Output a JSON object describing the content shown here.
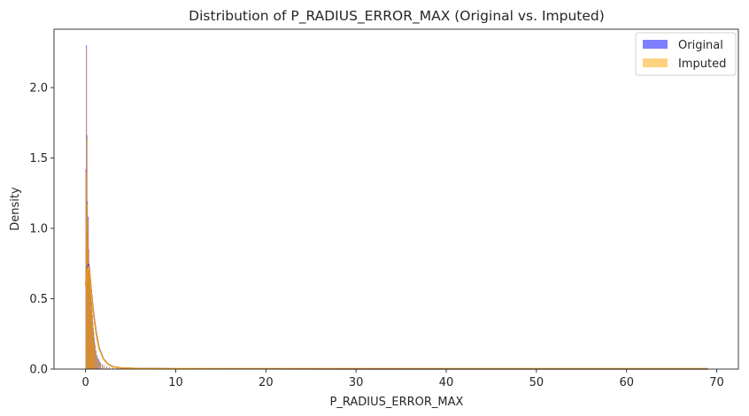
{
  "chart_data": {
    "type": "bar",
    "title": "Distribution of P_RADIUS_ERROR_MAX (Original vs. Imputed)",
    "xlabel": "P_RADIUS_ERROR_MAX",
    "ylabel": "Density",
    "xlim": [
      -3.5,
      72.4
    ],
    "ylim": [
      0,
      2.415
    ],
    "xticks": [
      0,
      10,
      20,
      30,
      40,
      50,
      60,
      70
    ],
    "yticks": [
      0.0,
      0.5,
      1.0,
      1.5,
      2.0
    ],
    "xtick_labels": [
      "0",
      "10",
      "20",
      "30",
      "40",
      "50",
      "60",
      "70"
    ],
    "ytick_labels": [
      "0.0",
      "0.5",
      "1.0",
      "1.5",
      "2.0"
    ],
    "grid": false,
    "legend": "top-right",
    "bin_width": 0.05,
    "series": [
      {
        "name": "Original",
        "color": "#0000ff",
        "kind": "histogram",
        "bins": [
          [
            0.0,
            1.42
          ],
          [
            0.05,
            2.3
          ],
          [
            0.1,
            1.66
          ],
          [
            0.15,
            1.19
          ],
          [
            0.2,
            0.96
          ],
          [
            0.25,
            1.08
          ],
          [
            0.3,
            0.85
          ],
          [
            0.35,
            0.74
          ],
          [
            0.4,
            0.7
          ],
          [
            0.45,
            0.62
          ],
          [
            0.5,
            0.58
          ],
          [
            0.55,
            0.52
          ],
          [
            0.6,
            0.47
          ],
          [
            0.65,
            0.42
          ],
          [
            0.7,
            0.38
          ],
          [
            0.75,
            0.33
          ],
          [
            0.8,
            0.29
          ],
          [
            0.85,
            0.26
          ],
          [
            0.9,
            0.22
          ],
          [
            0.95,
            0.19
          ],
          [
            1.0,
            0.17
          ],
          [
            1.1,
            0.13
          ],
          [
            1.2,
            0.1
          ],
          [
            1.3,
            0.08
          ],
          [
            1.4,
            0.07
          ],
          [
            1.5,
            0.055
          ],
          [
            1.6,
            0.045
          ],
          [
            1.8,
            0.035
          ],
          [
            2.0,
            0.025
          ],
          [
            2.3,
            0.018
          ],
          [
            2.6,
            0.012
          ],
          [
            3.0,
            0.009
          ],
          [
            3.4,
            0.006
          ]
        ],
        "kde": [
          [
            0.0,
            0.6
          ],
          [
            0.1,
            0.66
          ],
          [
            0.2,
            0.72
          ],
          [
            0.3,
            0.74
          ],
          [
            0.4,
            0.72
          ],
          [
            0.5,
            0.66
          ],
          [
            0.6,
            0.58
          ],
          [
            0.8,
            0.45
          ],
          [
            1.0,
            0.34
          ],
          [
            1.2,
            0.25
          ],
          [
            1.5,
            0.15
          ],
          [
            2.0,
            0.07
          ],
          [
            2.5,
            0.035
          ],
          [
            3.0,
            0.018
          ],
          [
            4.0,
            0.008
          ],
          [
            6.0,
            0.004
          ],
          [
            10.0,
            0.002
          ],
          [
            20.0,
            0.001
          ],
          [
            40.0,
            0.0005
          ],
          [
            69.0,
            0.0003
          ]
        ]
      },
      {
        "name": "Imputed",
        "color": "#ffa500",
        "kind": "histogram",
        "bins": [
          [
            0.0,
            1.4
          ],
          [
            0.05,
            2.28
          ],
          [
            0.1,
            1.64
          ],
          [
            0.15,
            1.17
          ],
          [
            0.2,
            0.95
          ],
          [
            0.25,
            1.06
          ],
          [
            0.3,
            0.84
          ],
          [
            0.35,
            0.73
          ],
          [
            0.4,
            0.69
          ],
          [
            0.45,
            0.61
          ],
          [
            0.5,
            0.57
          ],
          [
            0.55,
            0.51
          ],
          [
            0.6,
            0.46
          ],
          [
            0.65,
            0.41
          ],
          [
            0.7,
            0.37
          ],
          [
            0.75,
            0.32
          ],
          [
            0.8,
            0.28
          ],
          [
            0.85,
            0.25
          ],
          [
            0.9,
            0.21
          ],
          [
            0.95,
            0.18
          ],
          [
            1.0,
            0.16
          ],
          [
            1.1,
            0.12
          ],
          [
            1.2,
            0.095
          ],
          [
            1.3,
            0.075
          ],
          [
            1.4,
            0.065
          ],
          [
            1.5,
            0.05
          ],
          [
            1.6,
            0.04
          ],
          [
            1.8,
            0.032
          ],
          [
            2.0,
            0.023
          ],
          [
            2.3,
            0.016
          ],
          [
            2.6,
            0.011
          ],
          [
            3.0,
            0.008
          ],
          [
            3.4,
            0.005
          ]
        ],
        "kde": [
          [
            0.0,
            0.59
          ],
          [
            0.1,
            0.65
          ],
          [
            0.2,
            0.71
          ],
          [
            0.3,
            0.73
          ],
          [
            0.4,
            0.71
          ],
          [
            0.5,
            0.65
          ],
          [
            0.6,
            0.57
          ],
          [
            0.8,
            0.44
          ],
          [
            1.0,
            0.33
          ],
          [
            1.2,
            0.24
          ],
          [
            1.5,
            0.145
          ],
          [
            2.0,
            0.068
          ],
          [
            2.5,
            0.034
          ],
          [
            3.0,
            0.017
          ],
          [
            4.0,
            0.008
          ],
          [
            6.0,
            0.004
          ],
          [
            10.0,
            0.002
          ],
          [
            20.0,
            0.001
          ],
          [
            40.0,
            0.0005
          ],
          [
            69.0,
            0.0003
          ]
        ]
      }
    ]
  }
}
